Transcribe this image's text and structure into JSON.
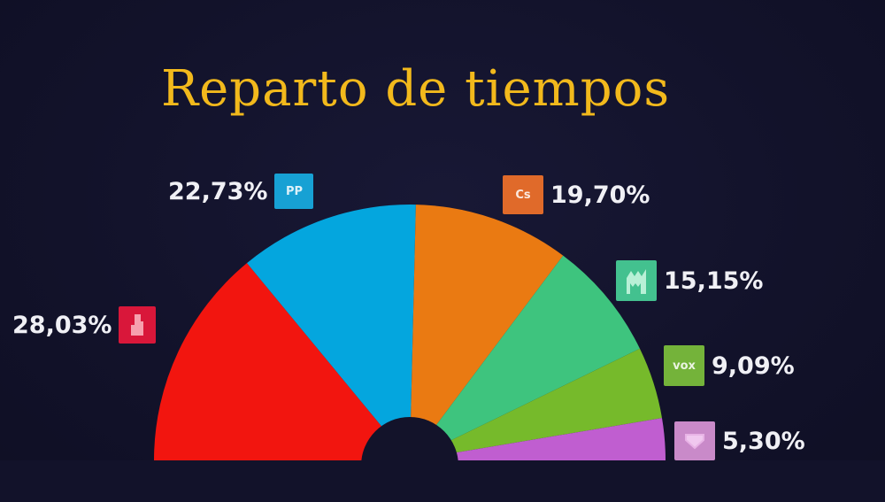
{
  "title": "Reparto de tiempos",
  "chart_data": {
    "type": "pie",
    "variant": "semicircle-parliament",
    "title": "Reparto de tiempos",
    "categories": [
      "PSOE",
      "PP",
      "Ciudadanos",
      "Más Madrid",
      "Vox",
      "Podemos"
    ],
    "values": [
      28.03,
      22.73,
      19.7,
      15.15,
      9.09,
      5.3
    ],
    "labels": [
      "28,03%",
      "22,73%",
      "19,70%",
      "15,15%",
      "9,09%",
      "5,30%"
    ],
    "colors": [
      "#f2150f",
      "#04a6de",
      "#ea7a12",
      "#3ec47e",
      "#76ba2b",
      "#c05ed0"
    ],
    "legend_position": "around"
  },
  "labels": [
    {
      "value": "28,03%",
      "logo_text": "",
      "logo_color": "#d9173a",
      "icon": "psoe-logo-icon"
    },
    {
      "value": "22,73%",
      "logo_text": "PP",
      "logo_color": "#17a1d4",
      "icon": "pp-logo-icon"
    },
    {
      "value": "19,70%",
      "logo_text": "Cs",
      "logo_color": "#e06a2a",
      "icon": "cs-logo-icon"
    },
    {
      "value": "15,15%",
      "logo_text": "",
      "logo_color": "#43c18f",
      "icon": "mas-madrid-logo-icon"
    },
    {
      "value": "9,09%",
      "logo_text": "vox",
      "logo_color": "#74b33a",
      "icon": "vox-logo-icon"
    },
    {
      "value": "5,30%",
      "logo_text": "",
      "logo_color": "#c98ac9",
      "icon": "podemos-logo-icon"
    }
  ]
}
